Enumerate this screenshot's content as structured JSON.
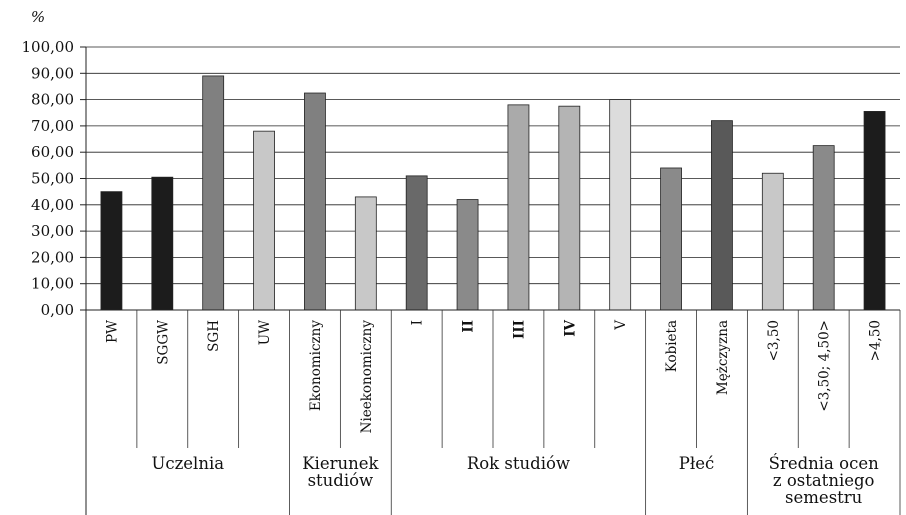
{
  "chart_data": {
    "type": "bar",
    "ylabel": "%",
    "ylim": [
      0,
      100
    ],
    "yticks": [
      "0,00",
      "10,00",
      "20,00",
      "30,00",
      "40,00",
      "50,00",
      "60,00",
      "70,00",
      "80,00",
      "90,00",
      "100,00"
    ],
    "grid": true,
    "categories": [
      "PW",
      "SGGW",
      "SGH",
      "UW",
      "Ekonomiczny",
      "Nieekonomiczny",
      "I",
      "II",
      "III",
      "IV",
      "V",
      "Kobieta",
      "Mężczyzna",
      "<3,50",
      "<3,50; 4,50>",
      ">4,50"
    ],
    "values": [
      45,
      50.5,
      89,
      68,
      82.5,
      43,
      51,
      42,
      78,
      77.5,
      80,
      54,
      72,
      52,
      62.5,
      75.5
    ],
    "colors": [
      "#1c1c1c",
      "#1c1c1c",
      "#808080",
      "#c8c8c8",
      "#808080",
      "#c8c8c8",
      "#696969",
      "#8a8a8a",
      "#aaaaaa",
      "#b4b4b4",
      "#dcdcdc",
      "#8a8a8a",
      "#595959",
      "#c8c8c8",
      "#8a8a8a",
      "#1c1c1c"
    ],
    "bold_categories": [
      "II",
      "III",
      "IV"
    ],
    "groups": [
      {
        "label": [
          "Uczelnia"
        ],
        "start": 0,
        "count": 4
      },
      {
        "label": [
          "Kierunek",
          "studiów"
        ],
        "start": 4,
        "count": 2
      },
      {
        "label": [
          "Rok studiów"
        ],
        "start": 6,
        "count": 5
      },
      {
        "label": [
          "Płeć"
        ],
        "start": 11,
        "count": 2
      },
      {
        "label": [
          "Średnia ocen",
          "z ostatniego",
          "semestru"
        ],
        "start": 13,
        "count": 3
      }
    ]
  }
}
